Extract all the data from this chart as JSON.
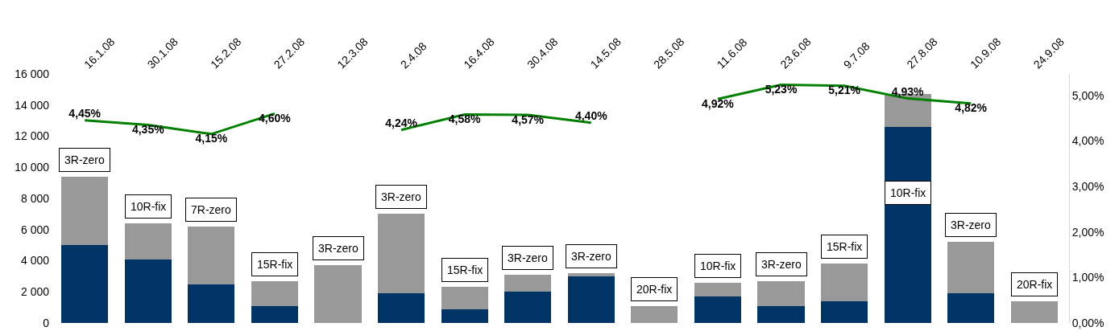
{
  "chart_data": {
    "type": "bar",
    "stacked": true,
    "categories": [
      "16.1.08",
      "30.1.08",
      "15.2.08",
      "27.2.08",
      "12.3.08",
      "2.4.08",
      "16.4.08",
      "30.4.08",
      "14.5.08",
      "28.5.08",
      "11.6.08",
      "23.6.08",
      "9.7.08",
      "27.8.08",
      "10.9.08",
      "24.9.08"
    ],
    "series": [
      {
        "color": "#003366",
        "values": [
          5000,
          4100,
          2500,
          1100,
          0,
          1900,
          900,
          2000,
          3000,
          0,
          1700,
          1100,
          1400,
          12600,
          1900,
          0
        ]
      },
      {
        "color": "#999999",
        "values": [
          4400,
          2300,
          3700,
          1600,
          3700,
          5100,
          1400,
          1100,
          200,
          1100,
          900,
          1600,
          2400,
          2100,
          3300,
          1400
        ]
      },
      {
        "type": "line",
        "axis": "y2",
        "color": "#008000",
        "values": [
          4.45,
          4.35,
          4.15,
          4.6,
          null,
          4.24,
          4.58,
          4.57,
          4.4,
          null,
          4.92,
          5.23,
          5.21,
          4.93,
          4.82,
          null
        ],
        "value_labels": [
          "4,45%",
          "4,35%",
          "4,15%",
          "4,60%",
          null,
          "4,24%",
          "4,58%",
          "4,57%",
          "4,40%",
          null,
          "4,92%",
          "5,23%",
          "5,21%",
          "4,93%",
          "4,82%",
          null
        ]
      }
    ],
    "ylim": [
      0,
      16000
    ],
    "yticks": [
      0,
      {
        "value": 2000,
        "label": "2 000"
      },
      {
        "value": 4000,
        "label": "4 000"
      },
      {
        "value": 6000,
        "label": "6 000"
      },
      {
        "value": 8000,
        "label": "8 000"
      },
      {
        "value": 10000,
        "label": "10 000"
      },
      {
        "value": 12000,
        "label": "12 000"
      },
      {
        "value": 14000,
        "label": "14 000"
      },
      {
        "value": 16000,
        "label": "16 000"
      }
    ],
    "y2lim": [
      0,
      5.47
    ],
    "y2ticks": [
      {
        "value": 0,
        "label": "0,00%"
      },
      {
        "value": 1,
        "label": "1,00%"
      },
      {
        "value": 2,
        "label": "2,00%"
      },
      {
        "value": 3,
        "label": "3,00%"
      },
      {
        "value": 4,
        "label": "4,00%"
      },
      {
        "value": 5,
        "label": "5,00%"
      }
    ],
    "annotations": [
      "3R-zero",
      "10R-fix",
      "7R-zero",
      "15R-fix",
      "3R-zero",
      "3R-zero",
      "15R-fix",
      "3R-zero",
      "3R-zero",
      "20R-fix",
      "10R-fix",
      "3R-zero",
      "15R-fix",
      "10R-fix",
      "3R-zero",
      "20R-fix"
    ],
    "grid": false,
    "legend": false
  }
}
